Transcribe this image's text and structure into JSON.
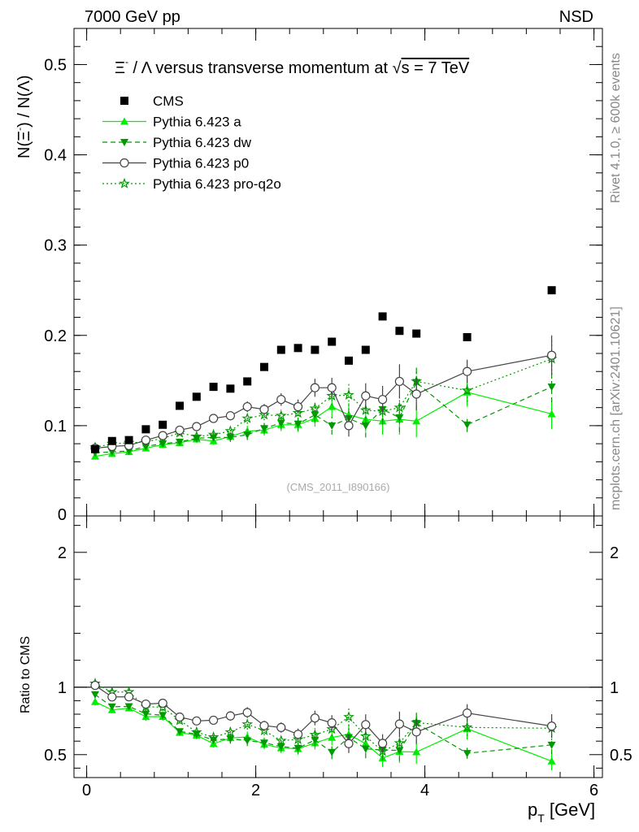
{
  "header": {
    "left_label": "7000 GeV pp",
    "right_label": "NSD",
    "side_label_top": "Rivet 4.1.0, ≥ 600k events",
    "side_label_bottom": "mcplots.cern.ch [arXiv:2401.10621]",
    "watermark": "(CMS_2011_I890166)"
  },
  "chart_data": {
    "type": "scatter",
    "title": "Ξ⁻ / Λ versus transverse momentum at √s = 7 TeV",
    "title_parts": {
      "pre": "Ξ",
      "sup": "-",
      "mid": " / Λ versus transverse momentum at ",
      "sqrt": "√",
      "post": "s = 7 TeV"
    },
    "ylabel": "N(Ξ⁻) / N(Λ)",
    "ylabel_parts": {
      "a": "N(Ξ",
      "sup": "-",
      "b": ")  /  N(Λ)"
    },
    "xlabel": "p_T [GeV]",
    "xlabel_parts": {
      "main": "p",
      "sub": "T",
      "unit": " [GeV]"
    },
    "ratio_ylabel": "Ratio to CMS",
    "xlim": [
      -0.15,
      6.1
    ],
    "ylim": [
      0,
      0.54
    ],
    "ratio_ylim": [
      0.33,
      2.27
    ],
    "xticks": [
      0,
      2,
      4,
      6
    ],
    "yticks": [
      0.1,
      0.2,
      0.3,
      0.4,
      0.5
    ],
    "ytick_labels": [
      "0.1",
      "0.2",
      "0.3",
      "0.4",
      "0.5"
    ],
    "y_zero_label": "0",
    "ratio_yticks": [
      0.5,
      1,
      2
    ],
    "ratio_ytick_labels": [
      "0.5",
      "1",
      "2"
    ],
    "x": [
      0.1,
      0.3,
      0.5,
      0.7,
      0.9,
      1.1,
      1.3,
      1.5,
      1.7,
      1.9,
      2.1,
      2.3,
      2.5,
      2.7,
      2.9,
      3.1,
      3.3,
      3.5,
      3.7,
      3.9,
      4.5,
      5.5
    ],
    "series": [
      {
        "name": "CMS",
        "color": "#000000",
        "marker": "square",
        "line": "none",
        "values": [
          0.074,
          0.083,
          0.084,
          0.096,
          0.101,
          0.122,
          0.132,
          0.143,
          0.141,
          0.149,
          0.165,
          0.184,
          0.186,
          0.184,
          0.193,
          0.172,
          0.184,
          0.221,
          0.205,
          0.202,
          0.198,
          0.25
        ]
      },
      {
        "name": "Pythia 6.423 a",
        "color": "#00ee00",
        "marker": "triangle-up",
        "line": "solid",
        "values": [
          0.066,
          0.069,
          0.071,
          0.075,
          0.079,
          0.081,
          0.085,
          0.083,
          0.088,
          0.094,
          0.095,
          0.101,
          0.101,
          0.108,
          0.121,
          0.112,
          0.107,
          0.105,
          0.107,
          0.105,
          0.137,
          0.113
        ],
        "errors": [
          0.002,
          0.002,
          0.002,
          0.003,
          0.003,
          0.003,
          0.004,
          0.004,
          0.005,
          0.006,
          0.006,
          0.007,
          0.008,
          0.009,
          0.011,
          0.013,
          0.014,
          0.015,
          0.017,
          0.018,
          0.016,
          0.017
        ]
      },
      {
        "name": "Pythia 6.423 dw",
        "color": "#009900",
        "marker": "triangle-down",
        "line": "dashed",
        "values": [
          0.07,
          0.071,
          0.072,
          0.077,
          0.08,
          0.082,
          0.086,
          0.087,
          0.087,
          0.09,
          0.097,
          0.103,
          0.102,
          0.112,
          0.1,
          0.108,
          0.1,
          0.118,
          0.109,
          0.148,
          0.101,
          0.143
        ],
        "errors": [
          0.002,
          0.002,
          0.002,
          0.003,
          0.003,
          0.003,
          0.004,
          0.004,
          0.005,
          0.006,
          0.006,
          0.007,
          0.008,
          0.009,
          0.01,
          0.012,
          0.013,
          0.015,
          0.016,
          0.018,
          0.008,
          0.017
        ]
      },
      {
        "name": "Pythia 6.423 p0",
        "color": "#444444",
        "marker": "circle-open",
        "line": "solid",
        "values": [
          0.075,
          0.077,
          0.078,
          0.084,
          0.089,
          0.095,
          0.099,
          0.108,
          0.111,
          0.121,
          0.118,
          0.129,
          0.121,
          0.142,
          0.142,
          0.1,
          0.133,
          0.129,
          0.149,
          0.135,
          0.16,
          0.178
        ],
        "errors": [
          0.002,
          0.002,
          0.002,
          0.003,
          0.003,
          0.003,
          0.004,
          0.004,
          0.005,
          0.006,
          0.006,
          0.007,
          0.008,
          0.01,
          0.011,
          0.012,
          0.014,
          0.015,
          0.019,
          0.018,
          0.013,
          0.022
        ]
      },
      {
        "name": "Pythia 6.423 pro-q2o",
        "color": "#009900",
        "marker": "star",
        "line": "dotted",
        "values": [
          0.076,
          0.08,
          0.081,
          0.082,
          0.086,
          0.092,
          0.088,
          0.09,
          0.094,
          0.108,
          0.112,
          0.111,
          0.114,
          0.119,
          0.133,
          0.134,
          0.117,
          0.116,
          0.12,
          0.149,
          0.139,
          0.174
        ],
        "errors": [
          0.002,
          0.002,
          0.002,
          0.003,
          0.003,
          0.003,
          0.004,
          0.004,
          0.005,
          0.006,
          0.006,
          0.007,
          0.008,
          0.009,
          0.01,
          0.012,
          0.013,
          0.015,
          0.016,
          0.018,
          0.013,
          0.022
        ]
      }
    ]
  }
}
